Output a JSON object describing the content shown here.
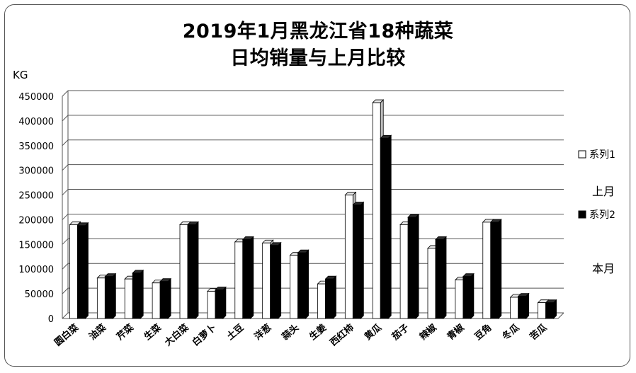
{
  "chart_data": {
    "type": "bar",
    "title_line1": "2019年1月黑龙江省18种蔬菜",
    "title_line2": "日均销量与上月比较",
    "ylabel": "KG",
    "ylim": [
      0,
      450000
    ],
    "yticks": [
      0,
      50000,
      100000,
      150000,
      200000,
      250000,
      300000,
      350000,
      400000,
      450000
    ],
    "grid": true,
    "legend_position": "right",
    "categories": [
      "圆白菜",
      "油菜",
      "芹菜",
      "生菜",
      "大白菜",
      "白萝卜",
      "土豆",
      "洋葱",
      "蒜头",
      "生姜",
      "西红柿",
      "黄瓜",
      "茄子",
      "辣椒",
      "青椒",
      "豆角",
      "冬瓜",
      "苦瓜"
    ],
    "series": [
      {
        "name": "系列1",
        "note": "上月",
        "color": "#ffffff",
        "values": [
          190000,
          82000,
          80000,
          72000,
          190000,
          55000,
          155000,
          153000,
          128000,
          70000,
          250000,
          437000,
          190000,
          142000,
          78000,
          195000,
          43000,
          32000
        ]
      },
      {
        "name": "系列2",
        "note": "本月",
        "color": "#000000",
        "values": [
          188000,
          85000,
          92000,
          75000,
          190000,
          58000,
          160000,
          148000,
          133000,
          80000,
          230000,
          365000,
          205000,
          160000,
          85000,
          195000,
          45000,
          32000
        ]
      }
    ]
  }
}
